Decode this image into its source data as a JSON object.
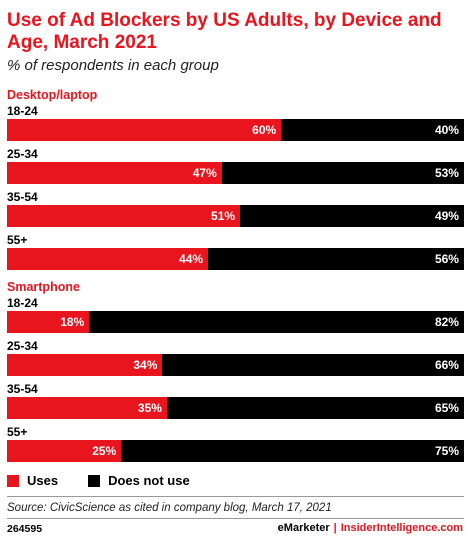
{
  "header": {
    "title": "Use of Ad Blockers by US Adults, by Device and Age, March 2021",
    "subtitle": "% of respondents in each group"
  },
  "chart_data": {
    "type": "bar",
    "orientation": "horizontal",
    "stacked": true,
    "title": "Use of Ad Blockers by US Adults, by Device and Age, March 2021",
    "subtitle": "% of respondents in each group",
    "groups": [
      {
        "name": "Desktop/laptop",
        "categories": [
          "18-24",
          "25-34",
          "35-54",
          "55+"
        ],
        "uses_labels": [
          "60%",
          "47%",
          "51%",
          "44%"
        ],
        "not_labels": [
          "40%",
          "53%",
          "49%",
          "56%"
        ],
        "series": [
          {
            "name": "Uses",
            "values": [
              60,
              47,
              51,
              44
            ]
          },
          {
            "name": "Does not use",
            "values": [
              40,
              53,
              49,
              56
            ]
          }
        ]
      },
      {
        "name": "Smartphone",
        "categories": [
          "18-24",
          "25-34",
          "35-54",
          "55+"
        ],
        "uses_labels": [
          "18%",
          "34%",
          "35%",
          "25%"
        ],
        "not_labels": [
          "82%",
          "66%",
          "65%",
          "75%"
        ],
        "series": [
          {
            "name": "Uses",
            "values": [
              18,
              34,
              35,
              25
            ]
          },
          {
            "name": "Does not use",
            "values": [
              82,
              66,
              65,
              75
            ]
          }
        ]
      }
    ],
    "colors": {
      "Uses": "#e8141e",
      "Does not use": "#000000"
    },
    "legend": "bottom-left"
  },
  "legend": {
    "uses": "Uses",
    "not_use": "Does not use"
  },
  "footer": {
    "source": "Source: CivicScience as cited in company blog, March 17, 2021",
    "chart_id": "264595",
    "brand_left": "eMarketer",
    "brand_sep": "|",
    "brand_right": "InsiderIntelligence.com"
  }
}
